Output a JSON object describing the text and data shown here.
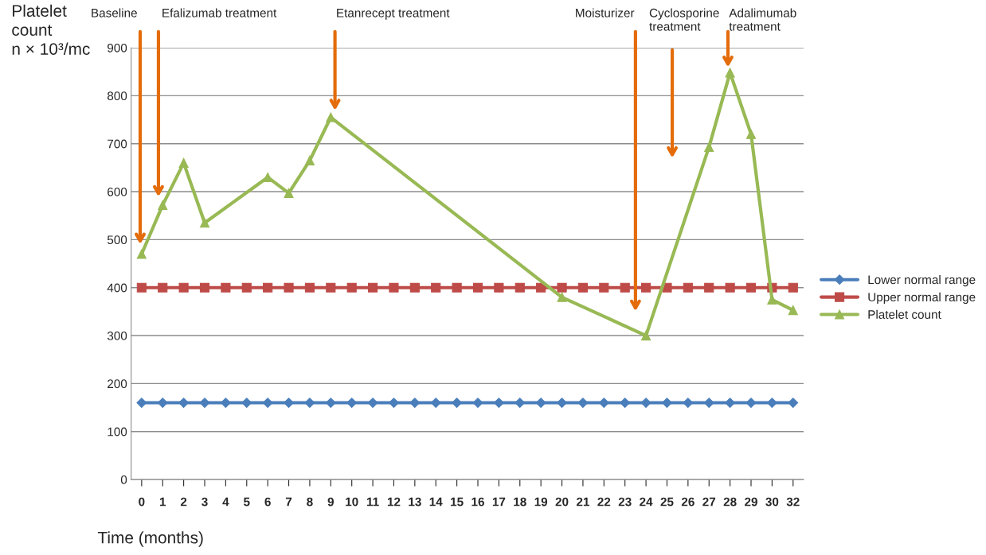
{
  "chart_data": {
    "type": "line",
    "ylabel": "Platelet\ncount\nn × 10³/mc",
    "xlabel": "Time (months)",
    "categories": [
      "0",
      "1",
      "2",
      "3",
      "4",
      "5",
      "6",
      "7",
      "8",
      "9",
      "10",
      "11",
      "12",
      "13",
      "14",
      "15",
      "16",
      "17",
      "18",
      "19",
      "20",
      "21",
      "22",
      "23",
      "24",
      "25",
      "26",
      "27",
      "28",
      "29",
      "30",
      "32"
    ],
    "series": [
      {
        "name": "Lower normal range",
        "color": "#4a7ebb",
        "marker": "diamond",
        "values": [
          160,
          160,
          160,
          160,
          160,
          160,
          160,
          160,
          160,
          160,
          160,
          160,
          160,
          160,
          160,
          160,
          160,
          160,
          160,
          160,
          160,
          160,
          160,
          160,
          160,
          160,
          160,
          160,
          160,
          160,
          160,
          160
        ]
      },
      {
        "name": "Upper normal range",
        "color": "#be4b48",
        "marker": "square",
        "values": [
          400,
          400,
          400,
          400,
          400,
          400,
          400,
          400,
          400,
          400,
          400,
          400,
          400,
          400,
          400,
          400,
          400,
          400,
          400,
          400,
          400,
          400,
          400,
          400,
          400,
          400,
          400,
          400,
          400,
          400,
          400,
          400
        ]
      },
      {
        "name": "Platelet count",
        "color": "#98b954",
        "marker": "triangle",
        "values": [
          470,
          572,
          660,
          535,
          null,
          null,
          630,
          597,
          665,
          755,
          null,
          null,
          null,
          null,
          null,
          null,
          null,
          null,
          null,
          null,
          380,
          null,
          null,
          null,
          300,
          null,
          null,
          693,
          848,
          720,
          375,
          353
        ]
      }
    ],
    "annotations": [
      "Baseline",
      "Efalizumab treatment",
      "Etanrecept treatment",
      "Moisturizer",
      "Cyclosporine\ntreatment",
      "Adalimumab\ntreatment"
    ],
    "ylim": [
      0,
      900
    ],
    "yticks": [
      0,
      100,
      200,
      300,
      400,
      500,
      600,
      700,
      800,
      900
    ],
    "grid": "y",
    "legend": "right"
  }
}
